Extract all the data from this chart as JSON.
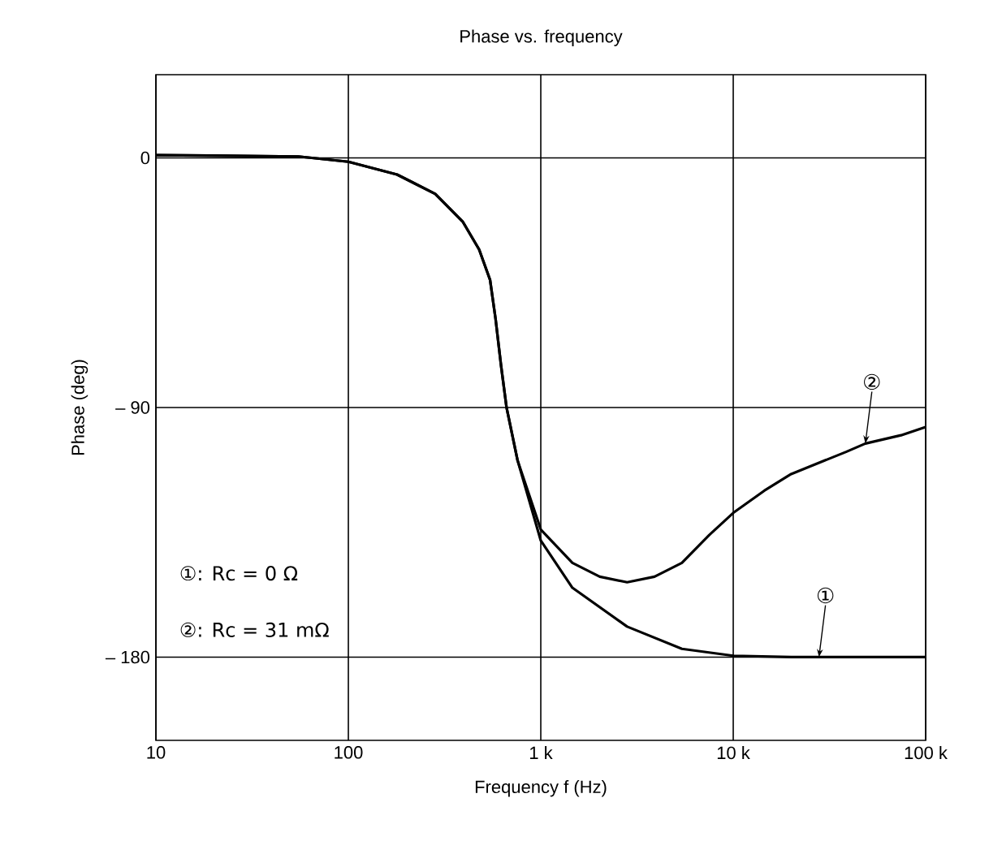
{
  "chart_data": {
    "type": "line",
    "title": "Phase vs. frequency",
    "xlabel": "Frequency f (Hz)",
    "ylabel": "Phase (deg)",
    "log": "x",
    "grid": true,
    "marker": "none",
    "line_style": "solid",
    "xlim": [
      10,
      100000
    ],
    "ylim": [
      -210,
      30
    ],
    "xticks": [
      {
        "value": 10,
        "label": "10"
      },
      {
        "value": 100,
        "label": "100"
      },
      {
        "value": 1000,
        "label": "1 k"
      },
      {
        "value": 10000,
        "label": "10 k"
      },
      {
        "value": 100000,
        "label": "100 k"
      }
    ],
    "yticks": [
      {
        "value": -180,
        "label": "– 180"
      },
      {
        "value": -90,
        "label": "– 90"
      },
      {
        "value": 0,
        "label": "0"
      }
    ],
    "series": [
      {
        "color": "#000000",
        "x": [
          10,
          55,
          100,
          179,
          283,
          393,
          478,
          545,
          582,
          622,
          664,
          757,
          1000,
          1460,
          2810,
          5410,
          10000,
          20000,
          100000
        ],
        "values": [
          1,
          0.5,
          -1.4,
          -6,
          -13,
          -23,
          -33,
          -44,
          -58,
          -75,
          -90,
          -109,
          -138,
          -155,
          -169,
          -177,
          -179.5,
          -180,
          -180
        ]
      },
      {
        "color": "#000000",
        "x": [
          10,
          55,
          100,
          179,
          283,
          393,
          478,
          545,
          582,
          622,
          664,
          757,
          1000,
          1460,
          2025,
          2810,
          3900,
          5410,
          7500,
          10000,
          14500,
          20000,
          38600,
          48600,
          74500,
          100000
        ],
        "values": [
          1,
          0.5,
          -1.4,
          -6,
          -13,
          -23,
          -33,
          -44,
          -58,
          -75,
          -90,
          -109,
          -134,
          -146,
          -151,
          -153,
          -151,
          -146,
          -136,
          -128,
          -120,
          -114,
          -106,
          -103,
          -100,
          -97
        ]
      }
    ],
    "annotations": [
      {
        "text": "②",
        "x": 48600,
        "y": -103
      },
      {
        "text": "①",
        "x": 27900,
        "y": -180
      },
      "①: Rc = 0 Ω",
      "②: Rc = 31 mΩ"
    ]
  }
}
